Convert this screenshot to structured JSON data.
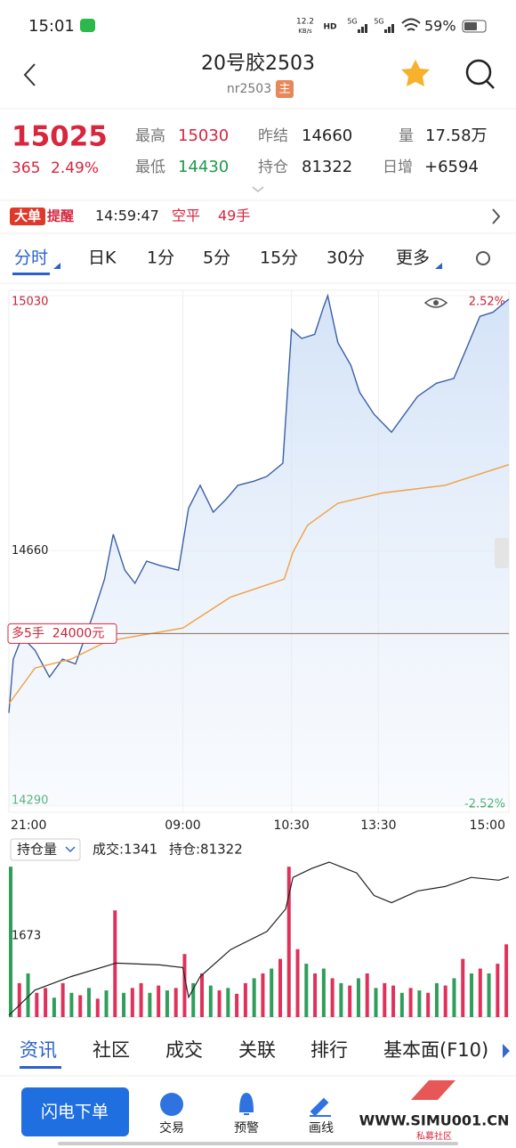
{
  "status_bar": {
    "time": "15:01",
    "net_speed": "12.2",
    "net_unit": "KB/s",
    "signals": [
      "HD",
      "5G",
      "5G"
    ],
    "battery": "59%"
  },
  "header": {
    "title": "20号胶2503",
    "code": "nr2503",
    "badge": "主"
  },
  "quote": {
    "price": "15025",
    "change": "365",
    "change_pct": "2.49%",
    "fields": [
      {
        "label": "最高",
        "value": "15030"
      },
      {
        "label": "最低",
        "value": "14430"
      },
      {
        "label": "昨结",
        "value": "14660"
      },
      {
        "label": "持仓",
        "value": "81322"
      },
      {
        "label": "量",
        "value": "17.58万"
      },
      {
        "label": "日增",
        "value": "+6594"
      }
    ]
  },
  "alert": {
    "badge": "大单",
    "tag": "提醒",
    "time": "14:59:47",
    "action": "空平",
    "size": "49手"
  },
  "tabs": [
    "分时",
    "日K",
    "1分",
    "5分",
    "15分",
    "30分",
    "更多"
  ],
  "chart": {
    "type": "line",
    "xlim": [
      0,
      345
    ],
    "xticks": [
      {
        "value": 0,
        "label": "21:00"
      },
      {
        "value": 120,
        "label": "09:00"
      },
      {
        "value": 195,
        "label": "10:30"
      },
      {
        "value": 255,
        "label": "13:30"
      },
      {
        "value": 345,
        "label": "15:00"
      }
    ],
    "ylim": [
      14290,
      15030
    ],
    "yticks": [
      14290,
      14660,
      15030
    ],
    "y2lim": [
      -2.52,
      2.52
    ],
    "y2ticks": [
      {
        "value": 2.52,
        "label": "2.52%"
      },
      {
        "value": -2.52,
        "label": "-2.52%"
      }
    ],
    "grid": true,
    "series": [
      {
        "name": "价格",
        "color": "#3b5fa8",
        "x": [
          0,
          3,
          9,
          18,
          28,
          37,
          46,
          58,
          66,
          72,
          80,
          87,
          95,
          104,
          117,
          124,
          132,
          141,
          150,
          158,
          169,
          178,
          189,
          195,
          202,
          211,
          217,
          220,
          227,
          236,
          242,
          252,
          264,
          273,
          282,
          295,
          307,
          316,
          325,
          334,
          342,
          345
        ],
        "values": [
          14425,
          14503,
          14535,
          14516,
          14477,
          14503,
          14496,
          14567,
          14619,
          14684,
          14632,
          14613,
          14645,
          14639,
          14632,
          14722,
          14755,
          14716,
          14735,
          14755,
          14761,
          14768,
          14787,
          14981,
          14968,
          14974,
          15013,
          15030,
          14962,
          14929,
          14890,
          14858,
          14832,
          14858,
          14884,
          14903,
          14910,
          14955,
          15000,
          15006,
          15020,
          15025
        ]
      },
      {
        "name": "均价",
        "color": "#f0a040",
        "x": [
          0,
          18,
          43,
          68,
          120,
          153,
          190,
          196,
          206,
          227,
          258,
          301,
          345
        ],
        "values": [
          14438,
          14490,
          14503,
          14529,
          14548,
          14593,
          14619,
          14658,
          14697,
          14729,
          14744,
          14755,
          14785
        ]
      }
    ],
    "order_line": {
      "label": "多5手  24000元",
      "value": 14540
    }
  },
  "volume": {
    "selector": "持仓量",
    "trade": "成交:1341",
    "position": "持仓:81322",
    "ylim": [
      0,
      3250
    ],
    "yticks": [
      1673
    ],
    "x": [
      0,
      6,
      12,
      18,
      24,
      30,
      36,
      42,
      48,
      54,
      60,
      66,
      72,
      78,
      84,
      90,
      96,
      102,
      108,
      114,
      120,
      126,
      132,
      138,
      144,
      150,
      156,
      162,
      168,
      174,
      180,
      186,
      192,
      198,
      204,
      210,
      216,
      222,
      228,
      234,
      240,
      246,
      252,
      258,
      264,
      270,
      276,
      282,
      288,
      294,
      300,
      306,
      312,
      318,
      324,
      330,
      336,
      342
    ],
    "values": [
      3100,
      700,
      900,
      500,
      600,
      400,
      700,
      500,
      450,
      600,
      380,
      550,
      2200,
      500,
      600,
      700,
      500,
      650,
      550,
      600,
      1300,
      700,
      900,
      650,
      550,
      600,
      480,
      700,
      800,
      900,
      1000,
      1200,
      3100,
      1400,
      1100,
      900,
      1000,
      800,
      700,
      650,
      800,
      900,
      600,
      700,
      650,
      500,
      600,
      550,
      500,
      700,
      650,
      800,
      1200,
      900,
      1000,
      900,
      1100,
      1500
    ],
    "colors": [
      "#2f9e5a",
      "#e0315a",
      "#2f9e5a",
      "#e0315a",
      "#e0315a",
      "#2f9e5a",
      "#e0315a",
      "#2f9e5a",
      "#e0315a",
      "#2f9e5a",
      "#e0315a",
      "#2f9e5a",
      "#e0315a",
      "#2f9e5a",
      "#e0315a",
      "#e0315a",
      "#2f9e5a",
      "#e0315a",
      "#2f9e5a",
      "#e0315a",
      "#e0315a",
      "#2f9e5a",
      "#e0315a",
      "#2f9e5a",
      "#e0315a",
      "#2f9e5a",
      "#e0315a",
      "#e0315a",
      "#2f9e5a",
      "#e0315a",
      "#2f9e5a",
      "#e0315a",
      "#e0315a",
      "#e0315a",
      "#2f9e5a",
      "#e0315a",
      "#2f9e5a",
      "#e0315a",
      "#2f9e5a",
      "#e0315a",
      "#2f9e5a",
      "#e0315a",
      "#2f9e5a",
      "#e0315a",
      "#e0315a",
      "#2f9e5a",
      "#e0315a",
      "#2f9e5a",
      "#e0315a",
      "#2f9e5a",
      "#e0315a",
      "#2f9e5a",
      "#e0315a",
      "#2f9e5a",
      "#e0315a",
      "#2f9e5a",
      "#e0315a",
      "#e0315a"
    ],
    "oi": {
      "name": "持仓量",
      "color": "#222222",
      "y2lim": [
        73500,
        82300
      ],
      "x": [
        0,
        18,
        43,
        74,
        104,
        120,
        124,
        132,
        153,
        178,
        191,
        196,
        209,
        221,
        240,
        252,
        264,
        282,
        301,
        319,
        338,
        345
      ],
      "values": [
        73598,
        75007,
        75761,
        76515,
        76415,
        76264,
        74604,
        75761,
        77270,
        78276,
        79534,
        81294,
        81797,
        82149,
        81546,
        80288,
        79886,
        80540,
        80791,
        81294,
        81143,
        81322
      ]
    }
  },
  "bottom_tabs": [
    "资讯",
    "社区",
    "成交",
    "关联",
    "排行",
    "基本面(F10)"
  ],
  "toolbar": {
    "button": "闪电下单",
    "items": [
      "交易",
      "预警",
      "画线"
    ],
    "watermark": "WWW.SIMU001.CN",
    "watermark_sub": "私募社区"
  }
}
